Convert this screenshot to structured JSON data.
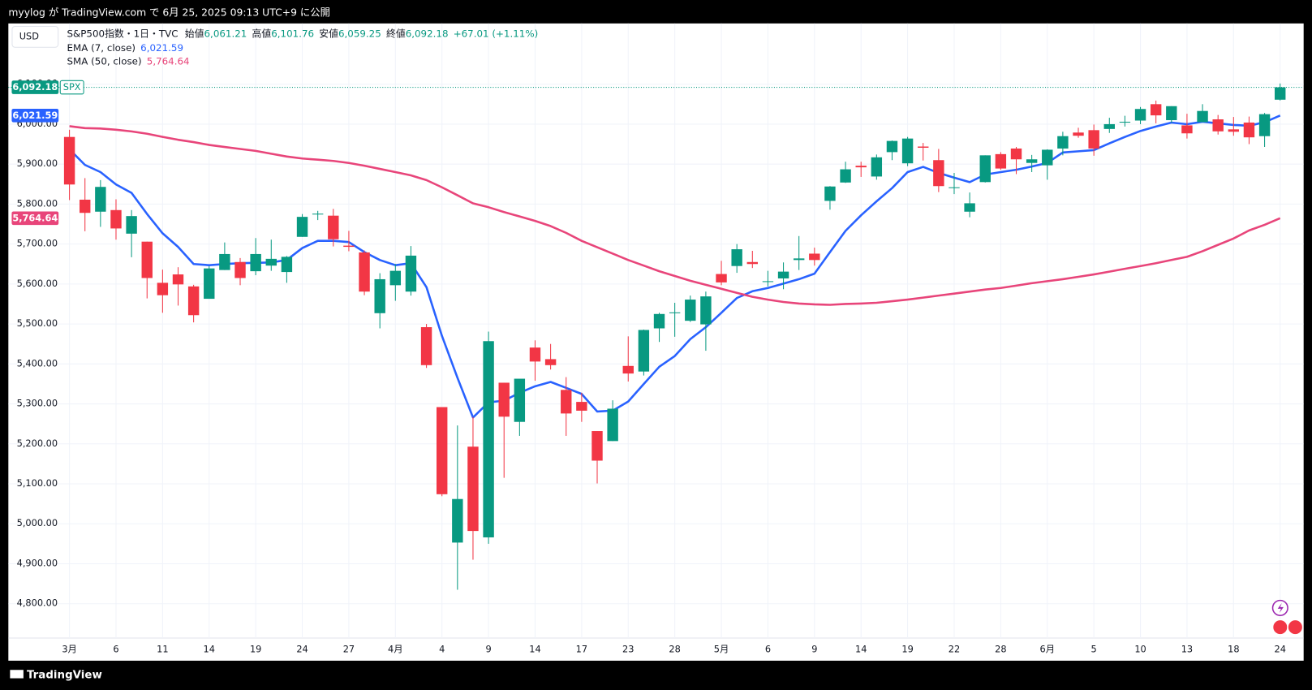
{
  "header": {
    "published": "myylog が TradingView.com で 6月 25, 2025 09:13 UTC+9 に公開",
    "brand": "TradingView"
  },
  "chart_data": {
    "type": "candlestick",
    "currency": "USD",
    "symbol": "S&P500指数・1日・TVC",
    "ticker": "SPX",
    "ohlc_legend": [
      {
        "label": "始値",
        "value_label": "6,061.21"
      },
      {
        "label": "高値",
        "value_label": "6,101.76"
      },
      {
        "label": "安値",
        "value_label": "6,059.25"
      },
      {
        "label": "終値",
        "value_label": "6,092.18"
      }
    ],
    "change_label": "+67.01 (+1.11%)",
    "up_color": "#089981",
    "down_color": "#f23645",
    "categories": [
      "3月",
      null,
      null,
      "6",
      null,
      null,
      "11",
      null,
      null,
      "14",
      null,
      null,
      "19",
      null,
      null,
      "24",
      null,
      null,
      "27",
      null,
      null,
      "4月",
      null,
      null,
      "4",
      null,
      null,
      "9",
      null,
      null,
      "14",
      null,
      null,
      "17",
      null,
      null,
      "23",
      null,
      null,
      "28",
      null,
      null,
      "5月",
      null,
      null,
      "6",
      null,
      null,
      "9",
      null,
      null,
      "14",
      null,
      null,
      "19",
      null,
      null,
      "22",
      null,
      null,
      "28",
      null,
      null,
      "6月",
      null,
      null,
      "5",
      null,
      null,
      "10",
      null,
      null,
      "13",
      null,
      null,
      "18",
      null,
      null,
      "24"
    ],
    "open": [
      5968,
      5811,
      5781,
      5785,
      5726,
      5706,
      5603,
      5624,
      5594,
      5563,
      5635,
      5655,
      5632,
      5646,
      5630,
      5718,
      5775,
      5771,
      5696,
      5679,
      5527,
      5597,
      5581,
      5492,
      5292,
      4953,
      5193,
      4966,
      5353,
      5255,
      5441,
      5412,
      5335,
      5305,
      5232,
      5207,
      5395,
      5381,
      5489,
      5529,
      5508,
      5499,
      5625,
      5645,
      5655,
      5606,
      5614,
      5660,
      5676,
      5808,
      5854,
      5896,
      5869,
      5930,
      5902,
      5944,
      5910,
      5842,
      5781,
      5855,
      5925,
      5939,
      5903,
      5897,
      5939,
      5979,
      5985,
      5988,
      6005,
      6009,
      6050,
      6010,
      5997,
      6005,
      6012,
      5987,
      6004,
      5970,
      6061.21
    ],
    "high": [
      5986,
      5865,
      5860,
      5812,
      5785,
      5706,
      5636,
      5642,
      5598,
      5645,
      5704,
      5665,
      5715,
      5711,
      5670,
      5775,
      5783,
      5788,
      5733,
      5684,
      5627,
      5650,
      5695,
      5500,
      5292,
      5246,
      5267,
      5481,
      5353,
      5362,
      5459,
      5450,
      5367,
      5328,
      5232,
      5309,
      5469,
      5486,
      5528,
      5553,
      5571,
      5581,
      5658,
      5700,
      5683,
      5633,
      5654,
      5720,
      5691,
      5845,
      5906,
      5906,
      5924,
      5959,
      5968,
      5953,
      5938,
      5878,
      5829,
      5922,
      5930,
      5943,
      5923,
      5937,
      5981,
      5991,
      5999,
      6016,
      6021,
      6043,
      6059,
      6045,
      6026,
      6050,
      6023,
      6018,
      6019,
      6028,
      6101.76
    ],
    "low": [
      5810,
      5732,
      5743,
      5711,
      5667,
      5564,
      5528,
      5546,
      5504,
      5563,
      5635,
      5597,
      5622,
      5633,
      5603,
      5718,
      5760,
      5694,
      5682,
      5572,
      5489,
      5558,
      5571,
      5390,
      5069,
      4835,
      4910,
      4950,
      5115,
      5220,
      5358,
      5386,
      5220,
      5255,
      5101,
      5207,
      5356,
      5371,
      5455,
      5468,
      5505,
      5433,
      5597,
      5628,
      5640,
      5594,
      5587,
      5635,
      5646,
      5786,
      5853,
      5868,
      5861,
      5910,
      5895,
      5909,
      5830,
      5825,
      5767,
      5854,
      5886,
      5875,
      5880,
      5861,
      5922,
      5966,
      5921,
      5978,
      5994,
      6000,
      6002,
      6003,
      5964,
      6005,
      5974,
      5971,
      5950,
      5943,
      6059.25
    ],
    "close": [
      5849,
      5778,
      5843,
      5739,
      5770,
      5615,
      5572,
      5599,
      5522,
      5639,
      5675,
      5615,
      5675,
      5663,
      5668,
      5768,
      5776,
      5712,
      5693,
      5581,
      5612,
      5633,
      5671,
      5397,
      5074,
      5062,
      4982,
      5457,
      5268,
      5363,
      5406,
      5397,
      5276,
      5283,
      5158,
      5288,
      5376,
      5485,
      5525,
      5529,
      5561,
      5569,
      5604,
      5687,
      5650,
      5607,
      5631,
      5664,
      5660,
      5844,
      5887,
      5892,
      5917,
      5958,
      5964,
      5941,
      5845,
      5842,
      5802,
      5922,
      5889,
      5912,
      5912,
      5936,
      5970,
      5971,
      5939,
      6000,
      6006,
      6038,
      6022,
      6045,
      5977,
      6033,
      5982,
      5981,
      5967,
      6025,
      6092.18
    ],
    "overlays": [
      {
        "name": "EMA (7, close)",
        "color": "#2962ff",
        "value_label": "6,021.59",
        "values": [
          5937,
          5898,
          5880,
          5849,
          5828,
          5775,
          5727,
          5693,
          5650,
          5647,
          5650,
          5652,
          5653,
          5654,
          5660,
          5690,
          5708,
          5708,
          5705,
          5680,
          5660,
          5647,
          5652,
          5592,
          5470,
          5365,
          5266,
          5304,
          5308,
          5328,
          5344,
          5355,
          5340,
          5325,
          5281,
          5283,
          5306,
          5350,
          5393,
          5420,
          5462,
          5492,
          5528,
          5565,
          5582,
          5590,
          5601,
          5612,
          5626,
          5680,
          5733,
          5772,
          5807,
          5840,
          5880,
          5893,
          5878,
          5866,
          5855,
          5874,
          5880,
          5886,
          5894,
          5903,
          5929,
          5932,
          5935,
          5952,
          5968,
          5983,
          5994,
          6004,
          6000,
          6006,
          6002,
          5998,
          5996,
          6005,
          6021.59
        ]
      },
      {
        "name": "SMA (50, close)",
        "color": "#e8457a",
        "value_label": "5,764.64",
        "values": [
          5995,
          5990,
          5989,
          5986,
          5982,
          5976,
          5968,
          5961,
          5955,
          5948,
          5943,
          5938,
          5933,
          5926,
          5919,
          5914,
          5911,
          5908,
          5903,
          5896,
          5888,
          5880,
          5872,
          5860,
          5842,
          5822,
          5802,
          5792,
          5780,
          5769,
          5758,
          5745,
          5728,
          5708,
          5692,
          5676,
          5660,
          5646,
          5632,
          5620,
          5608,
          5598,
          5588,
          5578,
          5568,
          5561,
          5555,
          5551,
          5549,
          5548,
          5550,
          5551,
          5553,
          5557,
          5561,
          5566,
          5571,
          5576,
          5581,
          5586,
          5590,
          5596,
          5602,
          5607,
          5612,
          5618,
          5624,
          5631,
          5638,
          5645,
          5652,
          5660,
          5668,
          5682,
          5698,
          5714,
          5734,
          5748,
          5764.64
        ]
      }
    ],
    "ylim": [
      4714,
      6252
    ],
    "yticks": [
      {
        "value": 4800,
        "label": "4,800.00"
      },
      {
        "value": 4900,
        "label": "4,900.00"
      },
      {
        "value": 5000,
        "label": "5,000.00"
      },
      {
        "value": 5100,
        "label": "5,100.00"
      },
      {
        "value": 5200,
        "label": "5,200.00"
      },
      {
        "value": 5300,
        "label": "5,300.00"
      },
      {
        "value": 5400,
        "label": "5,400.00"
      },
      {
        "value": 5500,
        "label": "5,500.00"
      },
      {
        "value": 5600,
        "label": "5,600.00"
      },
      {
        "value": 5700,
        "label": "5,700.00"
      },
      {
        "value": 5800,
        "label": "5,800.00"
      },
      {
        "value": 5900,
        "label": "5,900.00"
      },
      {
        "value": 6000,
        "label": "6,000.00"
      },
      {
        "value": 6100,
        "label": "6,100.00"
      }
    ],
    "grid": true
  }
}
